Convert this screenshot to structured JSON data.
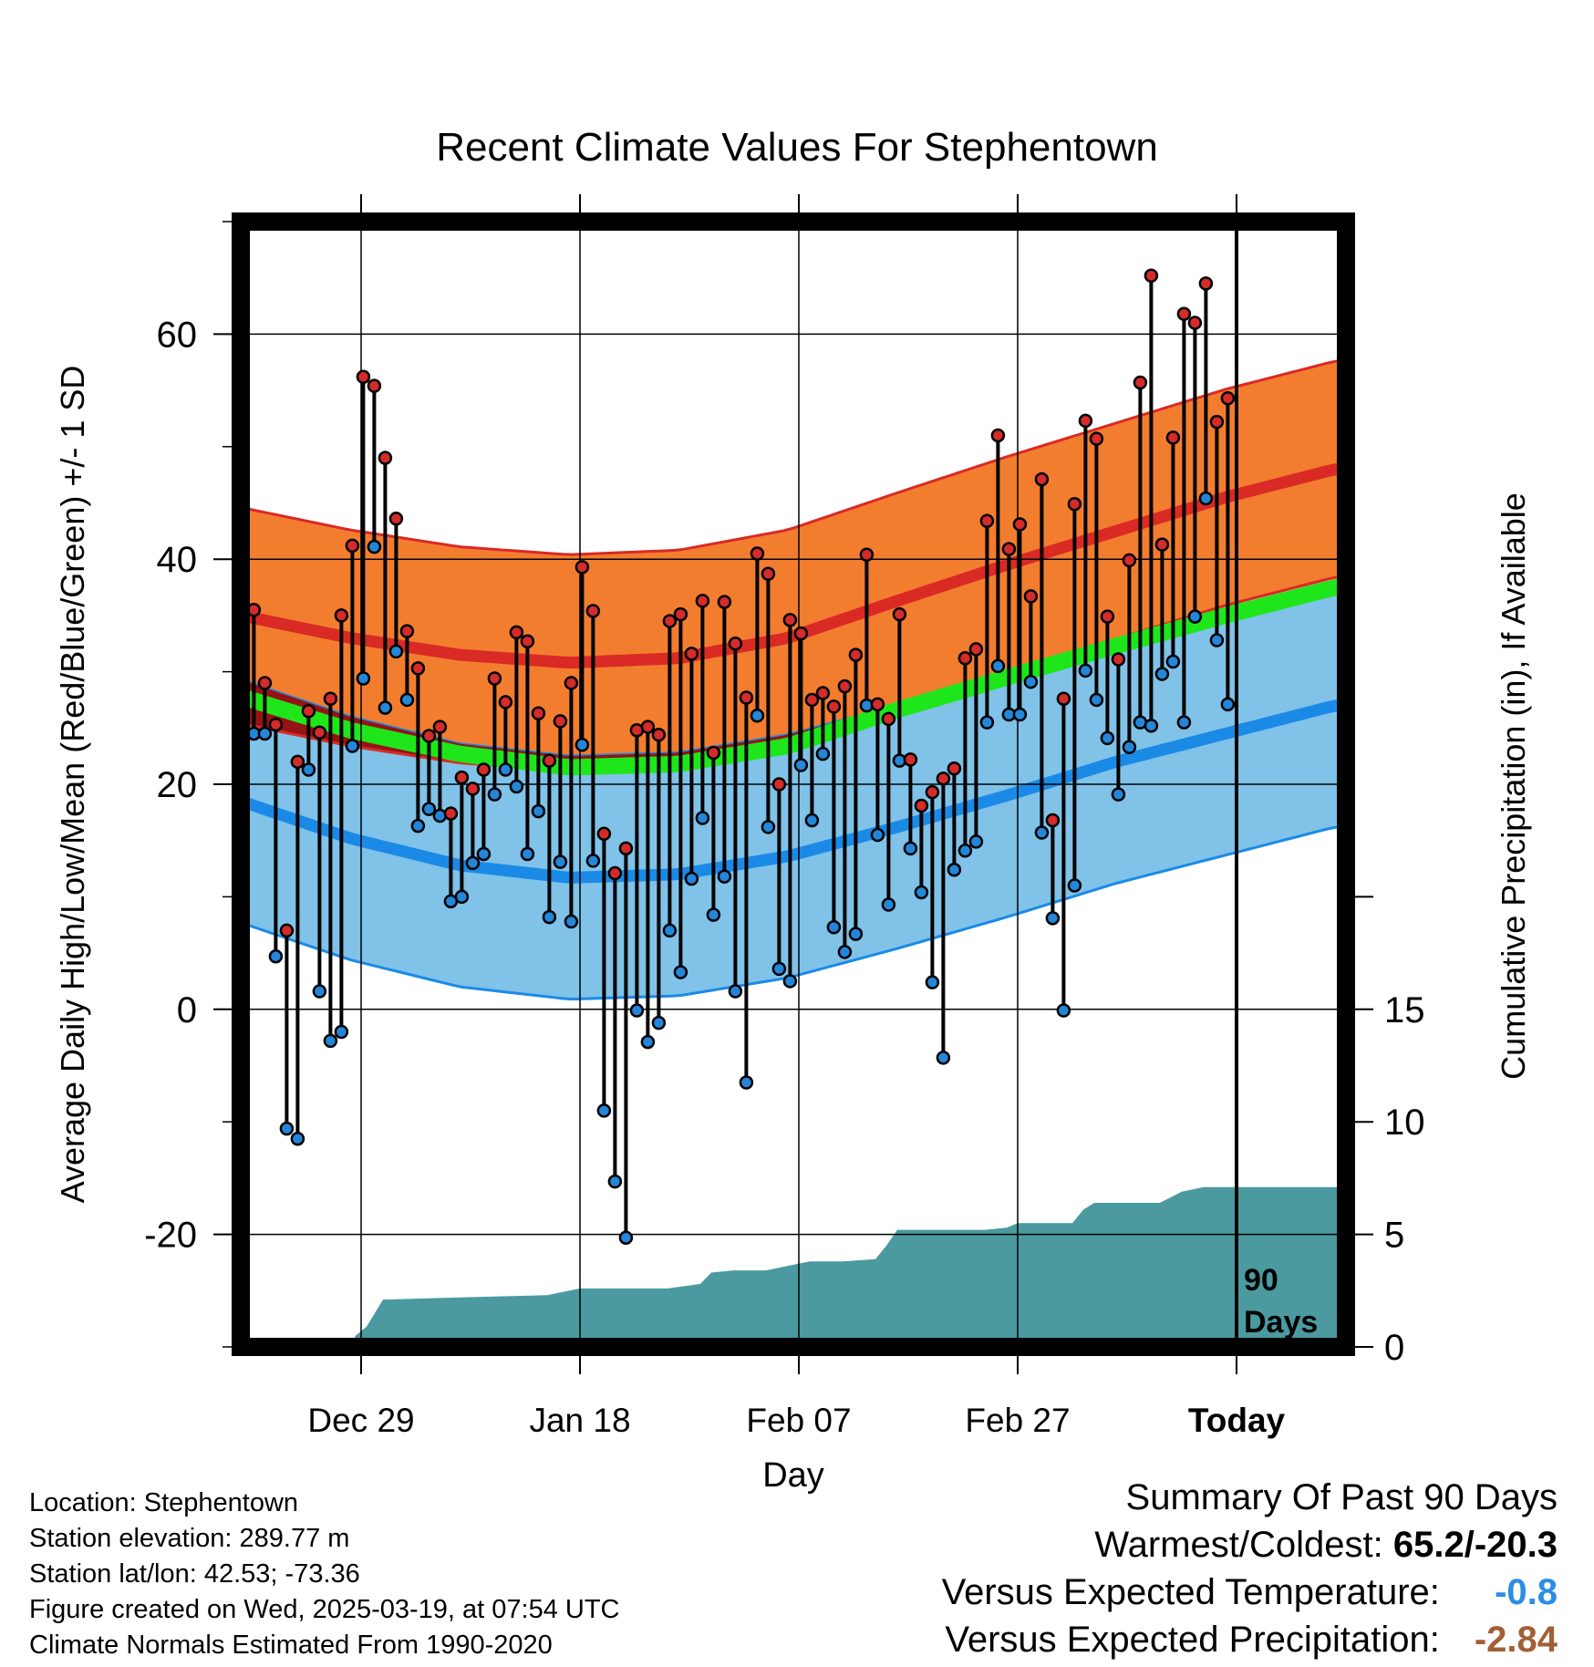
{
  "chart_data": {
    "type": "line",
    "title": "Recent Climate Values For Stephentown",
    "xlabel": "Day",
    "ylabel": "Average Daily High/Low/Mean (Red/Blue/Green) +/- 1 SD",
    "y2label": "Cumulative Precipitation (in), If Available",
    "ylim": [
      -30,
      70
    ],
    "y_ticks": [
      "60",
      "40",
      "20",
      "0",
      "-20"
    ],
    "y2lim": [
      0,
      50
    ],
    "y2_ticks": [
      "15",
      "10",
      "5",
      "0"
    ],
    "x_range_days": [
      0,
      101
    ],
    "x_ticks": [
      {
        "day": 11,
        "label": "Dec 29"
      },
      {
        "day": 31,
        "label": "Jan 18"
      },
      {
        "day": 51,
        "label": "Feb 07"
      },
      {
        "day": 71,
        "label": "Feb 27"
      },
      {
        "day": 91,
        "label": "Today"
      }
    ],
    "window_label": "90 Days",
    "grid": true,
    "normal_high_mean": [
      [
        0,
        35
      ],
      [
        10,
        33
      ],
      [
        20,
        31.5
      ],
      [
        30,
        30.8
      ],
      [
        40,
        31.2
      ],
      [
        50,
        33
      ],
      [
        60,
        36.3
      ],
      [
        70,
        39.5
      ],
      [
        80,
        42.5
      ],
      [
        90,
        45.5
      ],
      [
        100,
        48
      ]
    ],
    "normal_high_sd": 9.6,
    "normal_low_mean": [
      [
        0,
        18.5
      ],
      [
        10,
        15.2
      ],
      [
        20,
        12.8
      ],
      [
        30,
        11.7
      ],
      [
        40,
        12
      ],
      [
        50,
        13.6
      ],
      [
        60,
        16.2
      ],
      [
        70,
        19
      ],
      [
        80,
        22
      ],
      [
        90,
        24.5
      ],
      [
        100,
        27
      ]
    ],
    "normal_low_sd": 10.8,
    "normal_mean": [
      [
        0,
        27.8
      ],
      [
        10,
        24.8
      ],
      [
        20,
        22.7
      ],
      [
        30,
        21.5
      ],
      [
        40,
        21.8
      ],
      [
        50,
        23.4
      ],
      [
        60,
        26.6
      ],
      [
        70,
        29.5
      ],
      [
        80,
        32.3
      ],
      [
        90,
        35
      ],
      [
        100,
        37.5
      ]
    ],
    "daily_highs": [
      35.5,
      29,
      25.3,
      7,
      22,
      26.5,
      24.6,
      27.6,
      35,
      41.2,
      56.2,
      55.4,
      49,
      43.6,
      33.6,
      30.3,
      24.3,
      25.1,
      17.4,
      20.6,
      19.6,
      21.3,
      29.4,
      27.3,
      33.5,
      32.7,
      26.3,
      22.1,
      25.6,
      29,
      39.3,
      35.4,
      15.6,
      12.1,
      14.3,
      24.8,
      25.1,
      24.4,
      34.5,
      35.1,
      31.6,
      36.3,
      22.8,
      36.2,
      32.5,
      27.7,
      40.5,
      38.7,
      20,
      34.6,
      33.4,
      27.5,
      28.1,
      26.9,
      28.7,
      31.5,
      40.4,
      27.1,
      25.8,
      35.1,
      22.2,
      18.1,
      19.3,
      20.5,
      21.4,
      31.2,
      32,
      43.4,
      51,
      40.9,
      43.1,
      36.7,
      47.1,
      16.8,
      27.6,
      44.9,
      52.3,
      50.7,
      34.9,
      31.1,
      39.9,
      55.7,
      65.2,
      41.3,
      50.8,
      61.8,
      61,
      64.5,
      52.2,
      54.3
    ],
    "daily_lows": [
      24.5,
      24.5,
      4.7,
      -10.6,
      -11.5,
      21.3,
      1.6,
      -2.8,
      -2,
      23.4,
      29.4,
      41.1,
      26.8,
      31.8,
      27.5,
      16.3,
      17.8,
      17.2,
      9.6,
      10,
      13,
      13.8,
      19.1,
      21.3,
      19.8,
      13.8,
      17.6,
      8.2,
      13.1,
      7.8,
      23.5,
      13.2,
      -9,
      -15.3,
      -20.3,
      -0.1,
      -2.9,
      -1.2,
      7,
      3.3,
      11.6,
      17,
      8.4,
      11.8,
      1.6,
      -6.5,
      26.1,
      16.2,
      3.6,
      2.5,
      21.7,
      16.8,
      22.7,
      7.3,
      5.1,
      6.7,
      27,
      15.5,
      9.3,
      22.1,
      14.3,
      10.4,
      2.4,
      -4.3,
      12.4,
      14.1,
      14.9,
      25.5,
      30.5,
      26.2,
      26.2,
      29.1,
      15.7,
      8.1,
      -0.1,
      11,
      30.1,
      27.5,
      24.1,
      19.1,
      23.3,
      25.5,
      25.2,
      29.8,
      30.9,
      25.5,
      34.9,
      45.4,
      32.8,
      27.1
    ],
    "precip_cumulative": [
      [
        0,
        0
      ],
      [
        10,
        0
      ],
      [
        10.5,
        0.5
      ],
      [
        11.5,
        0.9
      ],
      [
        13,
        2.1
      ],
      [
        20,
        2.2
      ],
      [
        28,
        2.3
      ],
      [
        31,
        2.6
      ],
      [
        39,
        2.6
      ],
      [
        42,
        2.8
      ],
      [
        43,
        3.3
      ],
      [
        45,
        3.4
      ],
      [
        48,
        3.4
      ],
      [
        50,
        3.6
      ],
      [
        52,
        3.8
      ],
      [
        55,
        3.8
      ],
      [
        58,
        3.9
      ],
      [
        59,
        4.5
      ],
      [
        60,
        5.2
      ],
      [
        64,
        5.2
      ],
      [
        68,
        5.2
      ],
      [
        70,
        5.3
      ],
      [
        71,
        5.5
      ],
      [
        76,
        5.5
      ],
      [
        77,
        6.1
      ],
      [
        78,
        6.4
      ],
      [
        84,
        6.4
      ],
      [
        86,
        6.9
      ],
      [
        88,
        7.1
      ],
      [
        101,
        7.1
      ]
    ],
    "colors": {
      "high_band": "#f37d2f",
      "high_line": "#d92a25",
      "low_band": "#80c2e8",
      "low_line": "#1b8ae6",
      "mean_band": "#1ee61b",
      "overlap": "#951314",
      "precip": "#4a9aa0",
      "high_marker": "#d42b2b",
      "low_marker": "#2486d9",
      "warm_value": "#2b8ee6",
      "precip_value": "#a25f36"
    },
    "info": {
      "location": "Location: Stephentown",
      "elevation": "Station elevation: 289.77 m",
      "latlon": "Station lat/lon: 42.53; -73.36",
      "created": "Figure created on Wed, 2025-03-19, at 07:54 UTC",
      "normals": "Climate Normals Estimated From 1990-2020"
    },
    "summary": {
      "title": "Summary Of Past 90 Days",
      "warm_cold_label": "Warmest/Coldest:",
      "warm_cold_value": "65.2/-20.3",
      "temp_label": "Versus Expected Temperature:",
      "temp_value": "-0.8",
      "precip_label": "Versus Expected Precipitation:",
      "precip_value": "-2.84"
    }
  }
}
